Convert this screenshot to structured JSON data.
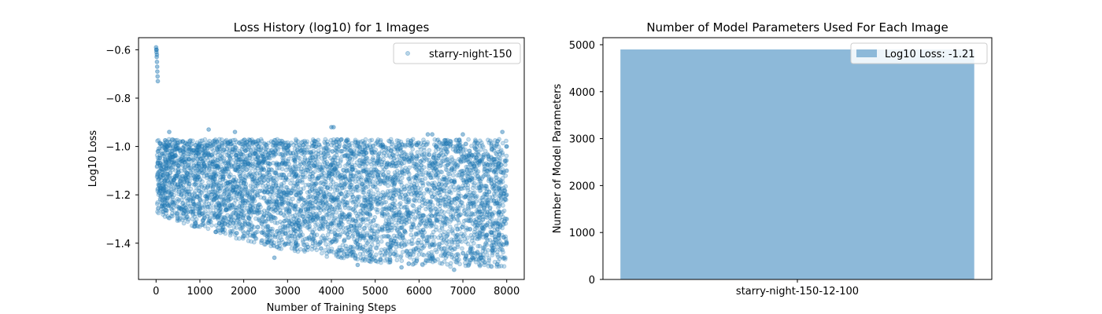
{
  "colors": {
    "series": "#1f77b4",
    "bar": "#8db9d9",
    "axis": "#000000",
    "legend_border": "#cccccc"
  },
  "chart_data": [
    {
      "type": "scatter",
      "title": "Loss History (log10) for 1 Images",
      "xlabel": "Number of Training Steps",
      "ylabel": "Log10 Loss",
      "xlim": [
        -400,
        8400
      ],
      "ylim": [
        -1.55,
        -0.55
      ],
      "xticks": [
        0,
        1000,
        2000,
        3000,
        4000,
        5000,
        6000,
        7000,
        8000
      ],
      "xtick_labels": [
        "0",
        "1000",
        "2000",
        "3000",
        "4000",
        "5000",
        "6000",
        "7000",
        "8000"
      ],
      "yticks": [
        -1.4,
        -1.2,
        -1.0,
        -0.8,
        -0.6
      ],
      "ytick_labels": [
        "−1.4",
        "−1.2",
        "−1.0",
        "−0.8",
        "−0.6"
      ],
      "grid": false,
      "legend_position": "top-right",
      "series": [
        {
          "name": "starry-night-150",
          "alpha": 0.25,
          "points": [
            [
              0,
              -0.59
            ],
            [
              5,
              -0.6
            ],
            [
              10,
              -0.61
            ],
            [
              15,
              -0.63
            ],
            [
              20,
              -0.65
            ],
            [
              25,
              -0.67
            ],
            [
              30,
              -0.69
            ],
            [
              35,
              -0.71
            ],
            [
              40,
              -0.73
            ],
            [
              12,
              -0.6
            ],
            [
              18,
              -0.62
            ],
            [
              300,
              -0.94
            ],
            [
              1200,
              -0.93
            ],
            [
              1800,
              -0.94
            ],
            [
              4000,
              -0.92
            ],
            [
              4050,
              -0.92
            ],
            [
              6200,
              -0.95
            ],
            [
              6300,
              -0.95
            ],
            [
              7000,
              -0.95
            ],
            [
              7900,
              -0.94
            ],
            [
              8000,
              -1.0
            ],
            [
              8000,
              -1.1
            ],
            [
              8000,
              -1.2
            ],
            [
              8000,
              -1.3
            ],
            [
              8000,
              -1.4
            ],
            [
              6800,
              -1.51
            ],
            [
              2700,
              -1.46
            ],
            [
              4600,
              -1.49
            ],
            [
              5600,
              -1.5
            ]
          ],
          "trend_range": {
            "x": [
              20,
              8000
            ],
            "upper": {
              "x": [
                0,
                8000
              ],
              "y": [
                -0.97,
                -0.97
              ]
            },
            "lower": {
              "x": [
                0,
                1000,
                2000,
                3000,
                4000,
                5000,
                6000,
                7000,
                8000
              ],
              "y": [
                -1.28,
                -1.34,
                -1.39,
                -1.43,
                -1.46,
                -1.48,
                -1.49,
                -1.5,
                -1.5
              ]
            }
          }
        }
      ]
    },
    {
      "type": "bar",
      "title": "Number of Model Parameters Used For Each Image",
      "xlabel": "",
      "ylabel": "Number of Model Parameters",
      "categories": [
        "starry-night-150-12-100"
      ],
      "values": [
        4900
      ],
      "ylim": [
        0,
        5150
      ],
      "yticks": [
        0,
        1000,
        2000,
        3000,
        4000,
        5000
      ],
      "ytick_labels": [
        "0",
        "1000",
        "2000",
        "3000",
        "4000",
        "5000"
      ],
      "grid": false,
      "legend_position": "top-right",
      "legend": [
        "Log10 Loss: -1.21"
      ]
    }
  ]
}
